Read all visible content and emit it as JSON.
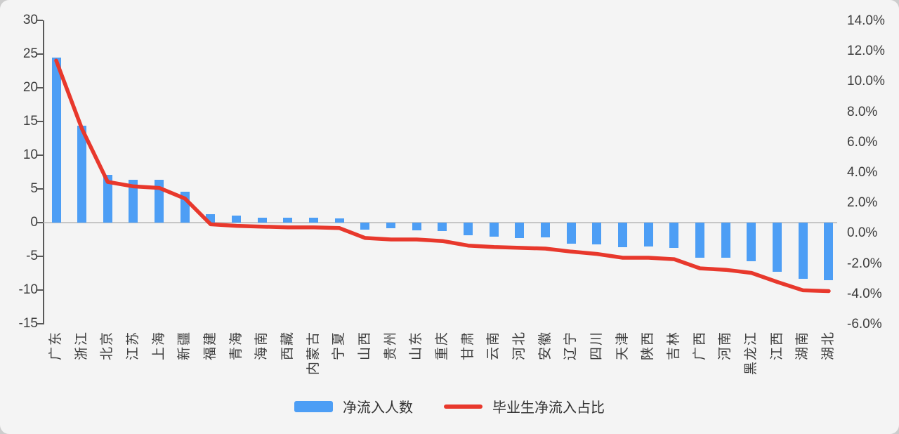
{
  "chart_data": {
    "type": "bar",
    "subtype": "bar-line-combo",
    "categories": [
      "广东",
      "浙江",
      "北京",
      "江苏",
      "上海",
      "新疆",
      "福建",
      "青海",
      "海南",
      "西藏",
      "内蒙古",
      "宁夏",
      "山西",
      "贵州",
      "山东",
      "重庆",
      "甘肃",
      "云南",
      "河北",
      "安徽",
      "辽宁",
      "四川",
      "天津",
      "陕西",
      "吉林",
      "广西",
      "河南",
      "黑龙江",
      "江西",
      "湖南",
      "湖北"
    ],
    "series": [
      {
        "name": "净流入人数",
        "kind": "bar",
        "axis": "left",
        "color": "#4D9EF5",
        "values": [
          24.5,
          14.4,
          7.1,
          6.4,
          6.4,
          4.6,
          1.25,
          1.0,
          0.7,
          0.7,
          0.75,
          0.6,
          -1.0,
          -0.8,
          -1.1,
          -1.3,
          -1.9,
          -2.05,
          -2.3,
          -2.2,
          -3.1,
          -3.2,
          -3.6,
          -3.5,
          -3.7,
          -5.2,
          -5.2,
          -5.7,
          -7.3,
          -8.3,
          -8.5
        ]
      },
      {
        "name": "毕业生净流入占比",
        "kind": "line",
        "axis": "right",
        "color": "#E8382C",
        "values_percent": [
          11.4,
          6.9,
          3.4,
          3.1,
          3.0,
          2.3,
          0.6,
          0.5,
          0.45,
          0.4,
          0.4,
          0.35,
          -0.3,
          -0.4,
          -0.4,
          -0.5,
          -0.8,
          -0.9,
          -0.95,
          -1.0,
          -1.2,
          -1.35,
          -1.6,
          -1.6,
          -1.7,
          -2.3,
          -2.4,
          -2.6,
          -3.2,
          -3.75,
          -3.8
        ]
      }
    ],
    "left_axis": {
      "min": -15,
      "max": 30,
      "step": 5,
      "ticks": [
        "30",
        "25",
        "20",
        "15",
        "10",
        "5",
        "0",
        "-5",
        "-10",
        "-15"
      ]
    },
    "right_axis": {
      "min": -6.0,
      "max": 14.0,
      "step": 2.0,
      "ticks": [
        "14.0%",
        "12.0%",
        "10.0%",
        "8.0%",
        "6.0%",
        "4.0%",
        "2.0%",
        "0.0%",
        "-2.0%",
        "-4.0%",
        "-6.0%"
      ]
    },
    "legend": {
      "position": "bottom",
      "items": [
        "净流入人数",
        "毕业生净流入占比"
      ]
    },
    "grid": "zero-line-only",
    "title": ""
  },
  "colors": {
    "bar": "#4D9EF5",
    "line": "#E8382C",
    "axis": "#595959",
    "zero_line": "#c6c6c6",
    "text": "#3d3d3d",
    "card_background": "#f4f4f4",
    "page_background": "#cdcdcd"
  }
}
